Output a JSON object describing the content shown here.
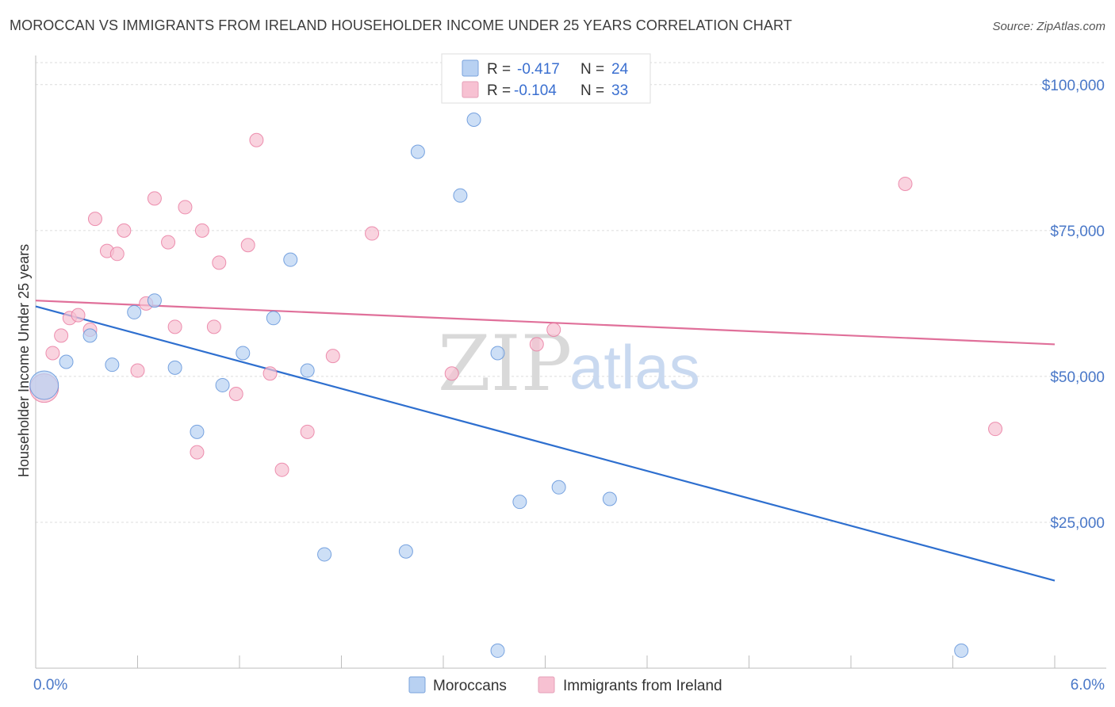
{
  "title": "MOROCCAN VS IMMIGRANTS FROM IRELAND HOUSEHOLDER INCOME UNDER 25 YEARS CORRELATION CHART",
  "source": "Source: ZipAtlas.com",
  "watermark": {
    "zip": "ZIP",
    "atlas": "atlas"
  },
  "colors": {
    "blue": "#5a8fd8",
    "blue_fill": "#b8d1f2",
    "pink": "#e8779e",
    "pink_fill": "#f7c1d2",
    "blue_line": "#2e6fcf",
    "pink_line": "#e0709a"
  },
  "legend_top": {
    "rows": [
      {
        "r_label": "R =",
        "r_value": "-0.417",
        "n_label": "N =",
        "n_value": "24"
      },
      {
        "r_label": "R =",
        "r_value": "-0.104",
        "n_label": "N =",
        "n_value": "33"
      }
    ]
  },
  "legend_bottom": [
    "Moroccans",
    "Immigrants from Ireland"
  ],
  "chart_data": {
    "type": "scatter",
    "title": "MOROCCAN VS IMMIGRANTS FROM IRELAND HOUSEHOLDER INCOME UNDER 25 YEARS CORRELATION CHART",
    "xlabel": "",
    "ylabel": "Householder Income Under 25 years",
    "xlim": [
      0.0,
      6.0
    ],
    "ylim": [
      0,
      105000
    ],
    "x_tick_labels": [
      "0.0%",
      "6.0%"
    ],
    "y_ticks": [
      25000,
      50000,
      75000,
      100000
    ],
    "y_tick_labels": [
      "$25,000",
      "$50,000",
      "$75,000",
      "$100,000"
    ],
    "grid": true,
    "series": [
      {
        "name": "Moroccans",
        "r": -0.417,
        "n": 24,
        "trend": {
          "x": [
            0.0,
            6.0
          ],
          "y": [
            62000,
            15000
          ]
        },
        "points": [
          {
            "x": 0.05,
            "y": 48500,
            "big": true
          },
          {
            "x": 0.18,
            "y": 52500
          },
          {
            "x": 0.32,
            "y": 57000
          },
          {
            "x": 0.45,
            "y": 52000
          },
          {
            "x": 0.58,
            "y": 61000
          },
          {
            "x": 0.7,
            "y": 63000
          },
          {
            "x": 0.82,
            "y": 51500
          },
          {
            "x": 0.95,
            "y": 40500
          },
          {
            "x": 1.1,
            "y": 48500
          },
          {
            "x": 1.22,
            "y": 54000
          },
          {
            "x": 1.4,
            "y": 60000
          },
          {
            "x": 1.5,
            "y": 70000
          },
          {
            "x": 1.6,
            "y": 51000
          },
          {
            "x": 1.7,
            "y": 19500
          },
          {
            "x": 2.18,
            "y": 20000
          },
          {
            "x": 2.25,
            "y": 88500
          },
          {
            "x": 2.5,
            "y": 81000
          },
          {
            "x": 2.58,
            "y": 94000
          },
          {
            "x": 2.72,
            "y": 3000
          },
          {
            "x": 2.72,
            "y": 54000
          },
          {
            "x": 2.85,
            "y": 28500
          },
          {
            "x": 3.08,
            "y": 31000
          },
          {
            "x": 3.38,
            "y": 29000
          },
          {
            "x": 5.45,
            "y": 3000
          }
        ]
      },
      {
        "name": "Immigrants from Ireland",
        "r": -0.104,
        "n": 33,
        "trend": {
          "x": [
            0.0,
            6.0
          ],
          "y": [
            63000,
            55500
          ]
        },
        "points": [
          {
            "x": 0.05,
            "y": 48000,
            "big": true
          },
          {
            "x": 0.1,
            "y": 54000
          },
          {
            "x": 0.15,
            "y": 57000
          },
          {
            "x": 0.2,
            "y": 60000
          },
          {
            "x": 0.25,
            "y": 60500
          },
          {
            "x": 0.32,
            "y": 58000
          },
          {
            "x": 0.35,
            "y": 77000
          },
          {
            "x": 0.42,
            "y": 71500
          },
          {
            "x": 0.48,
            "y": 71000
          },
          {
            "x": 0.52,
            "y": 75000
          },
          {
            "x": 0.6,
            "y": 51000
          },
          {
            "x": 0.65,
            "y": 62500
          },
          {
            "x": 0.7,
            "y": 80500
          },
          {
            "x": 0.78,
            "y": 73000
          },
          {
            "x": 0.82,
            "y": 58500
          },
          {
            "x": 0.88,
            "y": 79000
          },
          {
            "x": 0.95,
            "y": 37000
          },
          {
            "x": 0.98,
            "y": 75000
          },
          {
            "x": 1.05,
            "y": 58500
          },
          {
            "x": 1.08,
            "y": 69500
          },
          {
            "x": 1.18,
            "y": 47000
          },
          {
            "x": 1.25,
            "y": 72500
          },
          {
            "x": 1.3,
            "y": 90500
          },
          {
            "x": 1.38,
            "y": 50500
          },
          {
            "x": 1.45,
            "y": 34000
          },
          {
            "x": 1.6,
            "y": 40500
          },
          {
            "x": 1.75,
            "y": 53500
          },
          {
            "x": 1.98,
            "y": 74500
          },
          {
            "x": 2.45,
            "y": 50500
          },
          {
            "x": 2.95,
            "y": 55500
          },
          {
            "x": 3.05,
            "y": 58000
          },
          {
            "x": 5.12,
            "y": 83000
          },
          {
            "x": 5.65,
            "y": 41000
          }
        ]
      }
    ]
  }
}
